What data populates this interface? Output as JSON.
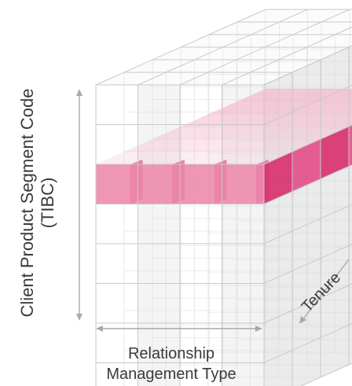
{
  "axes": {
    "vertical": {
      "line1": "Client Product Segment Code",
      "line2": "(TIBC)"
    },
    "horizontal": {
      "line1": "Relationship",
      "line2": "Management Type"
    },
    "depth": {
      "label": "Tenure"
    }
  },
  "cube": {
    "columns": 4,
    "rows": 8,
    "depth_slices": 6,
    "highlighted_row": 2
  },
  "colors": {
    "grid": "#c9c9c9",
    "face_light": "#f1f1f1",
    "highlight_front": "#ec84a8",
    "highlight_dark": "#d8326f",
    "highlight_top": "#f4b7cc",
    "arrow": "#a9a9a9",
    "text": "#3a3a3a"
  }
}
